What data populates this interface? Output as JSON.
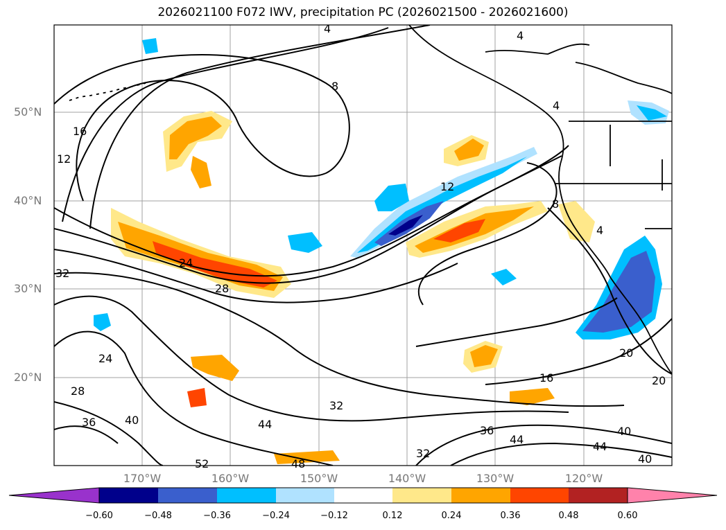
{
  "title": "2026021100 F072 IWV, precipitation PC (2026021500 - 2026021600)",
  "map": {
    "lat_labels": [
      "50°N",
      "40°N",
      "30°N",
      "20°N"
    ],
    "lon_labels": [
      "170°W",
      "160°W",
      "150°W",
      "140°W",
      "130°W",
      "120°W"
    ],
    "gridline_color": "#a0a0a0",
    "contour_labels": [
      "4",
      "8",
      "12",
      "16",
      "12",
      "24",
      "28",
      "32",
      "24",
      "28",
      "36",
      "40",
      "44",
      "52",
      "48",
      "32",
      "32",
      "36",
      "44",
      "40",
      "44",
      "40",
      "16",
      "20",
      "20",
      "8",
      "4",
      "4",
      "4"
    ]
  },
  "colorbar": {
    "ticks": [
      "−0.60",
      "−0.48",
      "−0.36",
      "−0.24",
      "−0.12",
      "0.12",
      "0.24",
      "0.36",
      "0.48",
      "0.60"
    ],
    "colors": [
      "#9932cc",
      "#00008b",
      "#3a5fcd",
      "#00bfff",
      "#b0e2ff",
      "#ffffff",
      "#ffe88a",
      "#ffa500",
      "#ff4500",
      "#b22222",
      "#ff82ab"
    ]
  }
}
